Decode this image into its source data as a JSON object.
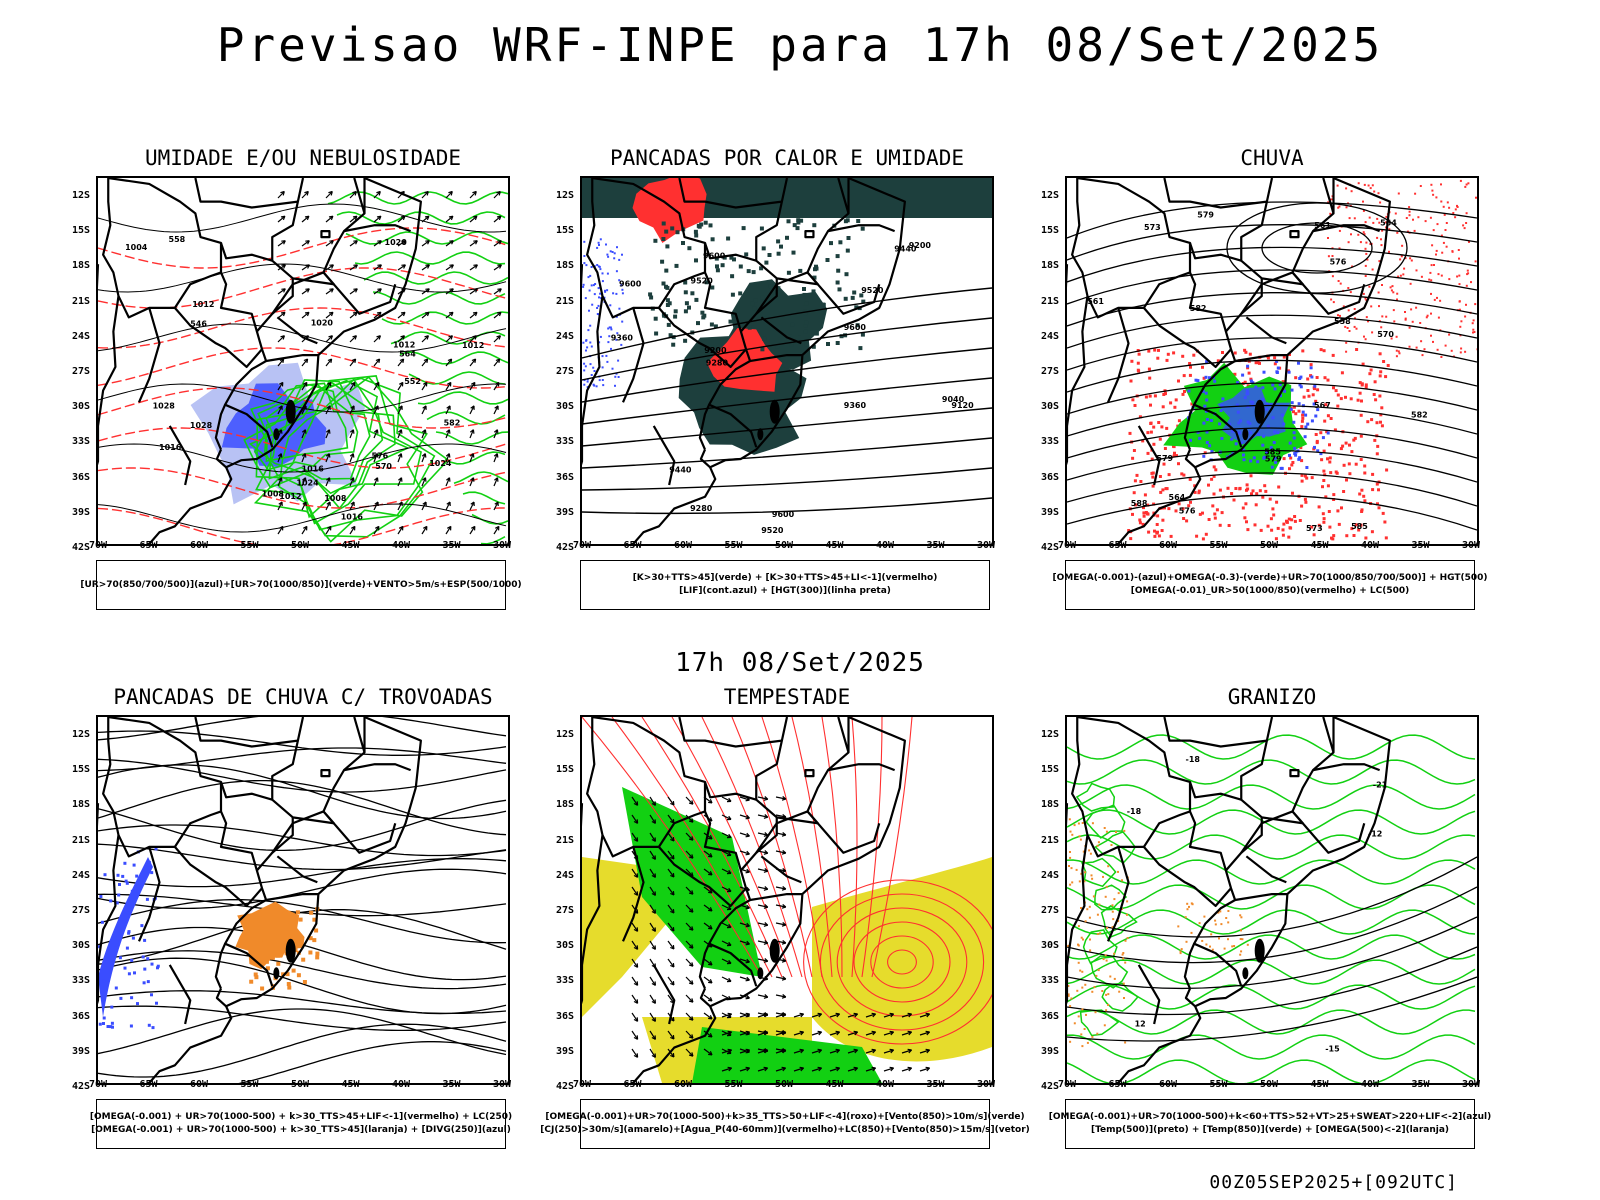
{
  "title": "Previsao WRF-INPE  para 17h 08/Set/2025",
  "subtitle": "17h 08/Set/2025",
  "run_stamp": "00Z05SEP2025+[092UTC]",
  "lat_ticks": [
    "12S",
    "15S",
    "18S",
    "21S",
    "24S",
    "27S",
    "30S",
    "33S",
    "36S",
    "39S",
    "42S"
  ],
  "lon_ticks": [
    "70W",
    "65W",
    "60W",
    "55W",
    "50W",
    "45W",
    "40W",
    "35W",
    "30W"
  ],
  "colors": {
    "blue": "#3a4dff",
    "light_blue": "#9aa8f0",
    "green": "#12d012",
    "red": "#ff3030",
    "dark_teal": "#1d3f3d",
    "orange": "#f08a2a",
    "yellow": "#e6dc2c",
    "black": "#000000"
  },
  "panels": [
    {
      "title": "UMIDADE E/OU NEBULOSIDADE",
      "legend": [
        "[UR>70(850/700/500)](azul)+[UR>70(1000/850)](verde)+VENTO>5m/s+ESP(500/1000)"
      ],
      "labels": [
        "1008",
        "1016",
        "1020",
        "1004",
        "1012",
        "1016",
        "1024",
        "1028",
        "1012",
        "1012",
        "1028",
        "1024",
        "1012",
        "1016",
        "1020",
        "1008",
        "576",
        "570",
        "582",
        "564",
        "558",
        "552",
        "546"
      ]
    },
    {
      "title": "PANCADAS POR CALOR E UMIDADE",
      "legend": [
        "[K>30+TTS>45](verde) + [K>30+TTS>45+LI<-1](vermelho)",
        "[LIF](cont.azul) + [HGT(300)](linha preta)"
      ],
      "labels": [
        "9600",
        "9520",
        "9600",
        "9600",
        "9440",
        "9520",
        "9360",
        "9280",
        "9200",
        "9120",
        "9040",
        "9600",
        "9520",
        "9440",
        "9360",
        "9280",
        "9200"
      ]
    },
    {
      "title": "CHUVA",
      "legend": [
        "[OMEGA(-0.001)-(azul)+OMEGA(-0.3)-(verde)+UR>70(1000/850/700/500)] + HGT(500)",
        "[OMEGA(-0.01)_UR>50(1000/850)(vermelho) + LC(500)"
      ],
      "labels": [
        "582",
        "585",
        "579",
        "588",
        "585",
        "582",
        "579",
        "576",
        "573",
        "570",
        "567",
        "564",
        "561",
        "558",
        "576",
        "573",
        "579",
        "564",
        "561"
      ]
    },
    {
      "title": "PANCADAS DE CHUVA C/ TROVOADAS",
      "legend": [
        "[OMEGA(-0.001) + UR>70(1000-500) + k>30_TTS>45+LIF<-1](vermelho) + LC(250)",
        "[OMEGA(-0.001) + UR>70(1000-500) + k>30_TTS>45](laranja) + [DIVG(250)](azul)"
      ],
      "labels": []
    },
    {
      "title": "TEMPESTADE",
      "legend": [
        "[OMEGA(-0.001)+UR>70(1000-500)+k>35_TTS>50+LIF<-4](roxo)+[Vento(850)>10m/s](verde)",
        "[CJ(250)>30m/s](amarelo)+[Agua_P(40-60mm)](vermelho)+LC(850)+[Vento(850)>15m/s](vetor)"
      ],
      "labels": []
    },
    {
      "title": "GRANIZO",
      "legend": [
        "[OMEGA(-0.001)+UR>70(1000-500)+k<60+TTS>52+VT>25+SWEAT>220+LIF<-2](azul)",
        "[Temp(500)](preto) + [Temp(850)](verde) + [OMEGA(500)<-2](laranja)"
      ],
      "labels": [
        "-18",
        "-12",
        "-15",
        "-18",
        "-21",
        "12"
      ]
    }
  ]
}
